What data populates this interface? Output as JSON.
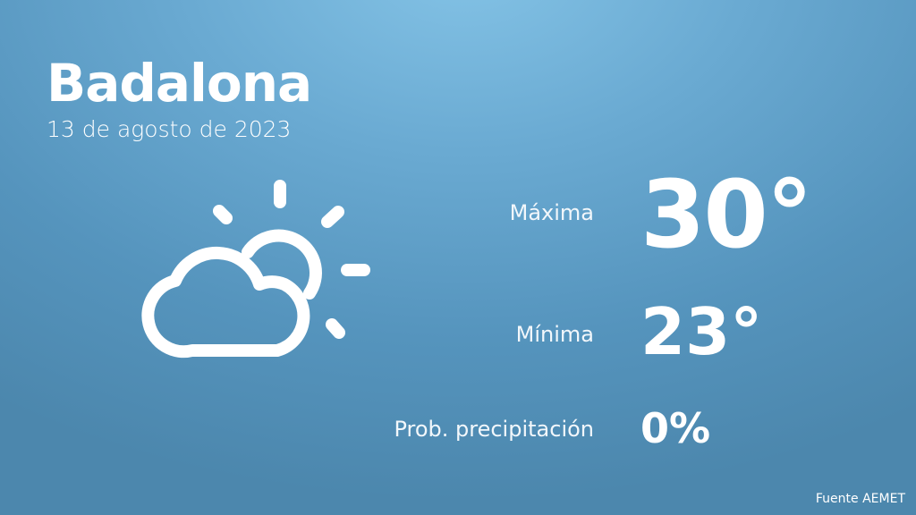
{
  "city": "Badalona",
  "date": "13 de agosto de 2023",
  "weather_icon": "partly-cloudy-icon",
  "rows": [
    {
      "label": "Máxima",
      "value": "30°"
    },
    {
      "label": "Mínima",
      "value": "23°"
    },
    {
      "label": "Prob. precipitación",
      "value": "0%"
    }
  ],
  "source": "Fuente AEMET",
  "colors": {
    "background_top": "#84c3e6",
    "background_bottom": "#4c87ad",
    "text": "#ffffff"
  }
}
